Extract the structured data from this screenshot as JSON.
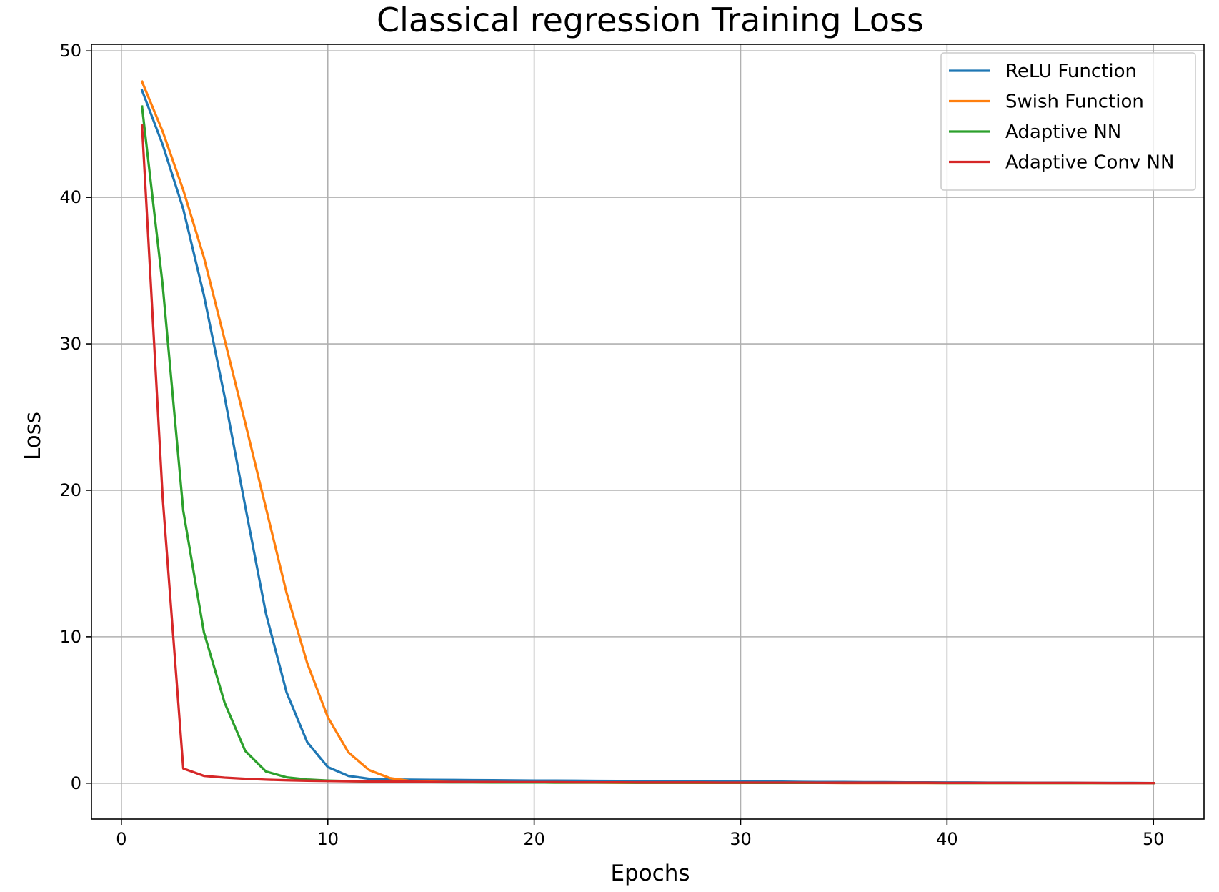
{
  "chart_data": {
    "type": "line",
    "title": "Classical regression Training Loss",
    "xlabel": "Epochs",
    "ylabel": "Loss",
    "xlim": [
      -1.45,
      52.45
    ],
    "ylim": [
      -2.45,
      50.45
    ],
    "xticks": [
      0,
      10,
      20,
      30,
      40,
      50
    ],
    "yticks": [
      0,
      10,
      20,
      30,
      40,
      50
    ],
    "grid": true,
    "legend_position": "top-right",
    "x": [
      1,
      2,
      3,
      4,
      5,
      6,
      7,
      8,
      9,
      10,
      11,
      12,
      13,
      14,
      15,
      16,
      17,
      18,
      19,
      20,
      21,
      22,
      23,
      24,
      25,
      26,
      27,
      28,
      29,
      30,
      31,
      32,
      33,
      34,
      35,
      36,
      37,
      38,
      39,
      40,
      41,
      42,
      43,
      44,
      45,
      46,
      47,
      48,
      49,
      50
    ],
    "series": [
      {
        "name": "ReLU Function",
        "color": "#1f77b4",
        "values": [
          47.3,
          43.6,
          39.2,
          33.3,
          26.4,
          18.9,
          11.6,
          6.2,
          2.8,
          1.1,
          0.5,
          0.3,
          0.25,
          0.24,
          0.23,
          0.22,
          0.21,
          0.2,
          0.19,
          0.18,
          0.18,
          0.17,
          0.16,
          0.15,
          0.15,
          0.14,
          0.13,
          0.12,
          0.12,
          0.11,
          0.1,
          0.1,
          0.09,
          0.08,
          0.08,
          0.07,
          0.07,
          0.06,
          0.06,
          0.05,
          0.05,
          0.04,
          0.04,
          0.03,
          0.03,
          0.03,
          0.02,
          0.02,
          0.02,
          0.01
        ]
      },
      {
        "name": "Swish Function",
        "color": "#ff7f0e",
        "values": [
          47.9,
          44.5,
          40.5,
          35.9,
          30.3,
          24.6,
          18.8,
          13.0,
          8.2,
          4.5,
          2.1,
          0.9,
          0.35,
          0.15,
          0.1,
          0.08,
          0.07,
          0.06,
          0.05,
          0.05,
          0.04,
          0.04,
          0.04,
          0.03,
          0.03,
          0.03,
          0.03,
          0.02,
          0.02,
          0.02,
          0.02,
          0.02,
          0.02,
          0.02,
          0.01,
          0.01,
          0.01,
          0.01,
          0.01,
          0.01,
          0.01,
          0.01,
          0.01,
          0.01,
          0.01,
          0.01,
          0.01,
          0.01,
          0.01,
          0.01
        ]
      },
      {
        "name": "Adaptive NN",
        "color": "#2ca02c",
        "values": [
          46.2,
          34.0,
          18.6,
          10.3,
          5.5,
          2.2,
          0.8,
          0.4,
          0.25,
          0.18,
          0.14,
          0.11,
          0.09,
          0.08,
          0.07,
          0.06,
          0.06,
          0.05,
          0.05,
          0.05,
          0.04,
          0.04,
          0.04,
          0.04,
          0.03,
          0.03,
          0.03,
          0.03,
          0.03,
          0.03,
          0.02,
          0.02,
          0.02,
          0.02,
          0.02,
          0.02,
          0.02,
          0.02,
          0.02,
          0.01,
          0.01,
          0.01,
          0.01,
          0.01,
          0.01,
          0.01,
          0.01,
          0.01,
          0.01,
          0.01
        ]
      },
      {
        "name": "Adaptive Conv NN",
        "color": "#d62728",
        "values": [
          44.9,
          19.5,
          1.0,
          0.5,
          0.38,
          0.3,
          0.24,
          0.2,
          0.17,
          0.15,
          0.13,
          0.12,
          0.11,
          0.1,
          0.09,
          0.09,
          0.08,
          0.08,
          0.07,
          0.07,
          0.07,
          0.06,
          0.06,
          0.06,
          0.05,
          0.05,
          0.05,
          0.05,
          0.04,
          0.04,
          0.04,
          0.04,
          0.04,
          0.03,
          0.03,
          0.03,
          0.03,
          0.03,
          0.03,
          0.02,
          0.02,
          0.02,
          0.02,
          0.02,
          0.02,
          0.02,
          0.02,
          0.01,
          0.01,
          0.01
        ]
      }
    ]
  }
}
